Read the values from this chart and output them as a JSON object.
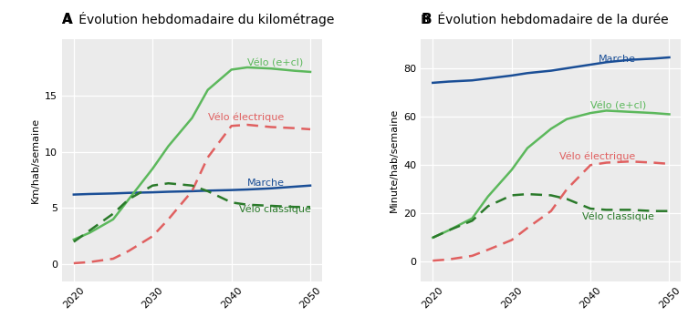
{
  "title_A": "Évolution hebdomadaire du kilométrage",
  "title_B": "Évolution hebdomadaire de la durée",
  "label_A": "A",
  "label_B": "B",
  "ylabel_A": "Km/hab/semaine",
  "ylabel_B": "Minute/hab/semaine",
  "years": [
    2020,
    2022,
    2025,
    2027,
    2030,
    2032,
    2035,
    2037,
    2040,
    2042,
    2045,
    2048,
    2050
  ],
  "A_marche": [
    6.2,
    6.25,
    6.3,
    6.35,
    6.4,
    6.45,
    6.5,
    6.55,
    6.6,
    6.65,
    6.75,
    6.9,
    7.0
  ],
  "A_velo_total": [
    2.2,
    2.8,
    4.0,
    5.8,
    8.5,
    10.5,
    13.0,
    15.5,
    17.3,
    17.5,
    17.4,
    17.2,
    17.1
  ],
  "A_velo_electrique": [
    0.1,
    0.2,
    0.5,
    1.2,
    2.5,
    4.0,
    6.5,
    9.5,
    12.3,
    12.4,
    12.2,
    12.1,
    12.0
  ],
  "A_velo_classique": [
    2.0,
    3.0,
    4.5,
    5.8,
    7.0,
    7.2,
    7.0,
    6.5,
    5.5,
    5.3,
    5.2,
    5.1,
    5.1
  ],
  "B_marche": [
    74.0,
    74.5,
    75.0,
    75.8,
    77.0,
    78.0,
    79.0,
    80.0,
    81.5,
    82.5,
    83.5,
    84.0,
    84.5
  ],
  "B_velo_total": [
    10.0,
    13.0,
    18.0,
    27.0,
    38.0,
    47.0,
    55.0,
    59.0,
    61.5,
    62.5,
    62.0,
    61.5,
    61.0
  ],
  "B_velo_electrique": [
    0.5,
    1.0,
    2.5,
    5.0,
    9.0,
    14.0,
    21.0,
    30.0,
    40.0,
    41.0,
    41.5,
    41.0,
    40.5
  ],
  "B_velo_classique": [
    10.0,
    13.0,
    17.0,
    23.0,
    27.5,
    28.0,
    27.5,
    26.0,
    22.0,
    21.5,
    21.5,
    21.0,
    21.0
  ],
  "color_marche": "#1a4e96",
  "color_velo_total": "#5cb85c",
  "color_velo_electrique": "#e06060",
  "color_velo_classique": "#2a7a2a",
  "ylim_A": [
    -1.5,
    20
  ],
  "yticks_A": [
    0,
    5,
    10,
    15
  ],
  "ylim_B": [
    -8,
    92
  ],
  "yticks_B": [
    0,
    20,
    40,
    60,
    80
  ],
  "xticks": [
    2020,
    2030,
    2040,
    2050
  ],
  "annot_A_velo_total": [
    2042,
    17.6
  ],
  "annot_A_velo_electrique": [
    2037,
    12.8
  ],
  "annot_A_marche": [
    2042,
    7.0
  ],
  "annot_A_velo_classique": [
    2041,
    4.6
  ],
  "annot_B_marche": [
    2041,
    82.8
  ],
  "annot_B_velo_total": [
    2040,
    63.2
  ],
  "annot_B_velo_electrique": [
    2036,
    42.5
  ],
  "annot_B_velo_classique": [
    2039,
    17.5
  ],
  "label_velo_total": "Vélo (e+cl)",
  "label_velo_electrique": "Vélo électrique",
  "label_marche": "Marche",
  "label_velo_classique": "Vélo classique",
  "fontsize_title": 10,
  "fontsize_panellabel": 11,
  "fontsize_ylabel": 8,
  "fontsize_tick": 8,
  "fontsize_annot": 8,
  "background_color": "#ebebeb",
  "linewidth": 1.8
}
